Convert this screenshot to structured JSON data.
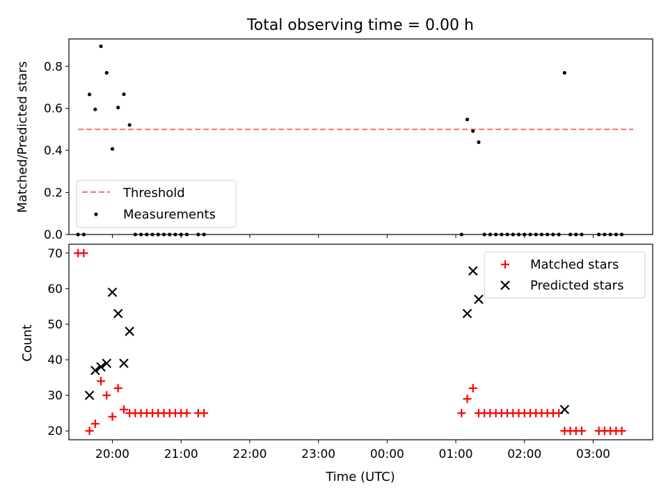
{
  "figure": {
    "title": "Total observing time = 0.00 h"
  },
  "chart_data": [
    {
      "type": "scatter",
      "title": "Total observing time = 0.00 h",
      "xlabel": "",
      "ylabel": "Matched/Predicted stars",
      "xlim": [
        "19:22",
        "03:52"
      ],
      "ylim": [
        0,
        0.93
      ],
      "yticks": [
        0.0,
        0.2,
        0.4,
        0.6,
        0.8
      ],
      "legend_location": "lower-left",
      "threshold": {
        "name": "Threshold",
        "value": 0.5,
        "x_range": [
          "19:30",
          "03:35"
        ],
        "color": "#ff7070",
        "style": "dashed"
      },
      "series": [
        {
          "name": "Measurements",
          "color": "#000000",
          "points": [
            {
              "x": "19:30",
              "y": 0.0
            },
            {
              "x": "19:35",
              "y": 0.0
            },
            {
              "x": "19:40",
              "y": 0.666
            },
            {
              "x": "19:45",
              "y": 0.595
            },
            {
              "x": "19:50",
              "y": 0.895
            },
            {
              "x": "19:55",
              "y": 0.769
            },
            {
              "x": "20:00",
              "y": 0.407
            },
            {
              "x": "20:05",
              "y": 0.604
            },
            {
              "x": "20:10",
              "y": 0.667
            },
            {
              "x": "20:15",
              "y": 0.521
            },
            {
              "x": "20:20",
              "y": 0.0
            },
            {
              "x": "20:25",
              "y": 0.0
            },
            {
              "x": "20:30",
              "y": 0.0
            },
            {
              "x": "20:35",
              "y": 0.0
            },
            {
              "x": "20:40",
              "y": 0.0
            },
            {
              "x": "20:45",
              "y": 0.0
            },
            {
              "x": "20:50",
              "y": 0.0
            },
            {
              "x": "20:55",
              "y": 0.0
            },
            {
              "x": "21:00",
              "y": 0.0
            },
            {
              "x": "21:05",
              "y": 0.0
            },
            {
              "x": "21:15",
              "y": 0.0
            },
            {
              "x": "21:20",
              "y": 0.0
            },
            {
              "x": "01:05",
              "y": 0.0
            },
            {
              "x": "01:10",
              "y": 0.547
            },
            {
              "x": "01:15",
              "y": 0.492
            },
            {
              "x": "01:20",
              "y": 0.439
            },
            {
              "x": "01:25",
              "y": 0.0
            },
            {
              "x": "01:30",
              "y": 0.0
            },
            {
              "x": "01:35",
              "y": 0.0
            },
            {
              "x": "01:40",
              "y": 0.0
            },
            {
              "x": "01:45",
              "y": 0.0
            },
            {
              "x": "01:50",
              "y": 0.0
            },
            {
              "x": "01:55",
              "y": 0.0
            },
            {
              "x": "02:00",
              "y": 0.0
            },
            {
              "x": "02:05",
              "y": 0.0
            },
            {
              "x": "02:10",
              "y": 0.0
            },
            {
              "x": "02:15",
              "y": 0.0
            },
            {
              "x": "02:20",
              "y": 0.0
            },
            {
              "x": "02:25",
              "y": 0.0
            },
            {
              "x": "02:30",
              "y": 0.0
            },
            {
              "x": "02:35",
              "y": 0.769
            },
            {
              "x": "02:40",
              "y": 0.0
            },
            {
              "x": "02:45",
              "y": 0.0
            },
            {
              "x": "02:50",
              "y": 0.0
            },
            {
              "x": "03:05",
              "y": 0.0
            },
            {
              "x": "03:10",
              "y": 0.0
            },
            {
              "x": "03:15",
              "y": 0.0
            },
            {
              "x": "03:20",
              "y": 0.0
            },
            {
              "x": "03:25",
              "y": 0.0
            }
          ]
        }
      ]
    },
    {
      "type": "scatter",
      "xlabel": "Time (UTC)",
      "ylabel": "Count",
      "xlim": [
        "19:22",
        "03:52"
      ],
      "ylim": [
        17.5,
        72.5
      ],
      "yticks": [
        20,
        30,
        40,
        50,
        60,
        70
      ],
      "xticks": [
        "20:00",
        "21:00",
        "22:00",
        "23:00",
        "00:00",
        "01:00",
        "02:00",
        "03:00"
      ],
      "legend_location": "top-right",
      "series": [
        {
          "name": "Matched stars",
          "marker": "+",
          "color": "#ff0000",
          "points": [
            {
              "x": "19:30",
              "y": 70
            },
            {
              "x": "19:35",
              "y": 70
            },
            {
              "x": "19:40",
              "y": 20
            },
            {
              "x": "19:45",
              "y": 22
            },
            {
              "x": "19:50",
              "y": 34
            },
            {
              "x": "19:55",
              "y": 30
            },
            {
              "x": "20:00",
              "y": 24
            },
            {
              "x": "20:05",
              "y": 32
            },
            {
              "x": "20:10",
              "y": 26
            },
            {
              "x": "20:15",
              "y": 25
            },
            {
              "x": "20:20",
              "y": 25
            },
            {
              "x": "20:25",
              "y": 25
            },
            {
              "x": "20:30",
              "y": 25
            },
            {
              "x": "20:35",
              "y": 25
            },
            {
              "x": "20:40",
              "y": 25
            },
            {
              "x": "20:45",
              "y": 25
            },
            {
              "x": "20:50",
              "y": 25
            },
            {
              "x": "20:55",
              "y": 25
            },
            {
              "x": "21:00",
              "y": 25
            },
            {
              "x": "21:05",
              "y": 25
            },
            {
              "x": "21:15",
              "y": 25
            },
            {
              "x": "21:20",
              "y": 25
            },
            {
              "x": "01:05",
              "y": 25
            },
            {
              "x": "01:10",
              "y": 29
            },
            {
              "x": "01:15",
              "y": 32
            },
            {
              "x": "01:20",
              "y": 25
            },
            {
              "x": "01:25",
              "y": 25
            },
            {
              "x": "01:30",
              "y": 25
            },
            {
              "x": "01:35",
              "y": 25
            },
            {
              "x": "01:40",
              "y": 25
            },
            {
              "x": "01:45",
              "y": 25
            },
            {
              "x": "01:50",
              "y": 25
            },
            {
              "x": "01:55",
              "y": 25
            },
            {
              "x": "02:00",
              "y": 25
            },
            {
              "x": "02:05",
              "y": 25
            },
            {
              "x": "02:10",
              "y": 25
            },
            {
              "x": "02:15",
              "y": 25
            },
            {
              "x": "02:20",
              "y": 25
            },
            {
              "x": "02:25",
              "y": 25
            },
            {
              "x": "02:30",
              "y": 25
            },
            {
              "x": "02:35",
              "y": 20
            },
            {
              "x": "02:40",
              "y": 20
            },
            {
              "x": "02:45",
              "y": 20
            },
            {
              "x": "02:50",
              "y": 20
            },
            {
              "x": "03:05",
              "y": 20
            },
            {
              "x": "03:10",
              "y": 20
            },
            {
              "x": "03:15",
              "y": 20
            },
            {
              "x": "03:20",
              "y": 20
            },
            {
              "x": "03:25",
              "y": 20
            }
          ]
        },
        {
          "name": "Predicted stars",
          "marker": "x",
          "color": "#000000",
          "points": [
            {
              "x": "19:40",
              "y": 30
            },
            {
              "x": "19:45",
              "y": 37
            },
            {
              "x": "19:50",
              "y": 38
            },
            {
              "x": "19:55",
              "y": 39
            },
            {
              "x": "20:00",
              "y": 59
            },
            {
              "x": "20:05",
              "y": 53
            },
            {
              "x": "20:10",
              "y": 39
            },
            {
              "x": "20:15",
              "y": 48
            },
            {
              "x": "01:10",
              "y": 53
            },
            {
              "x": "01:15",
              "y": 65
            },
            {
              "x": "01:20",
              "y": 57
            },
            {
              "x": "02:35",
              "y": 26
            }
          ]
        }
      ]
    }
  ]
}
